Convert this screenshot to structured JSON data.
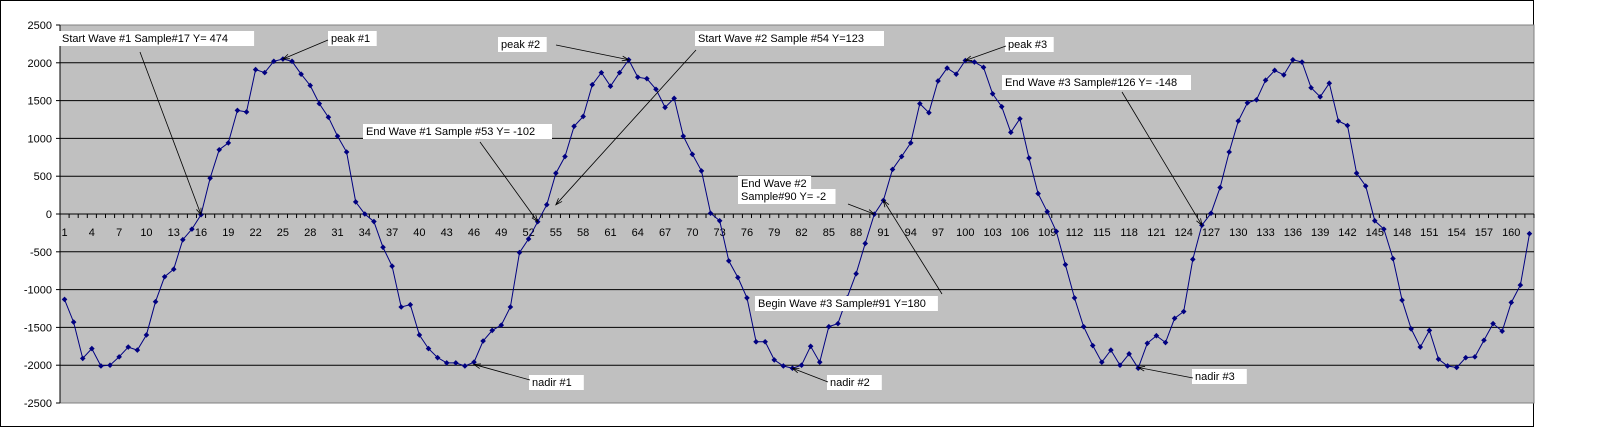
{
  "chart_data": {
    "type": "line",
    "title": "",
    "xlabel": "",
    "ylabel": "",
    "ylim": [
      -2500,
      2500
    ],
    "yticks": [
      2500,
      2000,
      1500,
      1000,
      500,
      0,
      -500,
      -1000,
      -1500,
      -2000,
      -2500
    ],
    "x_tick_labels": [
      1,
      4,
      7,
      10,
      13,
      16,
      19,
      22,
      25,
      28,
      31,
      34,
      37,
      40,
      43,
      46,
      49,
      52,
      55,
      58,
      61,
      64,
      67,
      70,
      73,
      76,
      79,
      82,
      85,
      88,
      91,
      94,
      97,
      100,
      103,
      106,
      109,
      112,
      115,
      118,
      121,
      124,
      127,
      130,
      133,
      136,
      139,
      142,
      145,
      148,
      151,
      154,
      157,
      160
    ],
    "grid": true,
    "legend": "none",
    "colors": {
      "plot_bg": "#c0c0c0",
      "series": "#000080",
      "grid": "#000000"
    },
    "series": [
      {
        "values": [
          -1130,
          -1430,
          -1910,
          -1780,
          -2010,
          -2000,
          -1890,
          -1760,
          -1800,
          -1600,
          -1160,
          -830,
          -730,
          -340,
          -200,
          -10,
          474,
          850,
          940,
          1370,
          1350,
          1910,
          1870,
          2020,
          2050,
          2020,
          1850,
          1700,
          1460,
          1280,
          1030,
          820,
          160,
          0,
          -100,
          -440,
          -690,
          -1230,
          -1200,
          -1600,
          -1780,
          -1900,
          -1970,
          -1970,
          -2010,
          -1960,
          -1680,
          -1540,
          -1470,
          -1230,
          -510,
          -330,
          -102,
          123,
          540,
          760,
          1160,
          1290,
          1710,
          1870,
          1690,
          1870,
          2040,
          1810,
          1790,
          1650,
          1410,
          1530,
          1030,
          790,
          570,
          10,
          -90,
          -620,
          -840,
          -1110,
          -1690,
          -1690,
          -1930,
          -2010,
          -2040,
          -2000,
          -1750,
          -1960,
          -1490,
          -1450,
          -1110,
          -790,
          -390,
          -2,
          180,
          590,
          760,
          940,
          1460,
          1340,
          1760,
          1930,
          1850,
          2030,
          2010,
          1940,
          1590,
          1420,
          1080,
          1260,
          740,
          270,
          30,
          -230,
          -670,
          -1110,
          -1490,
          -1740,
          -1960,
          -1800,
          -2000,
          -1850,
          -2040,
          -1710,
          -1610,
          -1700,
          -1380,
          -1290,
          -600,
          -148,
          10,
          350,
          820,
          1230,
          1470,
          1510,
          1770,
          1900,
          1840,
          2040,
          2010,
          1670,
          1550,
          1730,
          1230,
          1170,
          540,
          370,
          -90,
          -200,
          -590,
          -1140,
          -1520,
          -1760,
          -1540,
          -1920,
          -2010,
          -2030,
          -1900,
          -1890,
          -1670,
          -1450,
          -1550,
          -1170,
          -940,
          -260
        ]
      }
    ],
    "annotations": [
      {
        "text": "Start Wave #1 Sample#17 Y=  474"
      },
      {
        "text": "peak #1"
      },
      {
        "text": "peak #2"
      },
      {
        "text": "Start Wave #2 Sample #54 Y=123"
      },
      {
        "text": "peak #3"
      },
      {
        "text": "End Wave #3 Sample#126 Y= -148"
      },
      {
        "text": "End Wave #1 Sample #53 Y= -102"
      },
      {
        "text": "End Wave #2"
      },
      {
        "text": "Sample#90 Y= -2"
      },
      {
        "text": "Begin Wave #3 Sample#91 Y=180"
      },
      {
        "text": "nadir #1"
      },
      {
        "text": "nadir #2"
      },
      {
        "text": "nadir #3"
      }
    ]
  }
}
